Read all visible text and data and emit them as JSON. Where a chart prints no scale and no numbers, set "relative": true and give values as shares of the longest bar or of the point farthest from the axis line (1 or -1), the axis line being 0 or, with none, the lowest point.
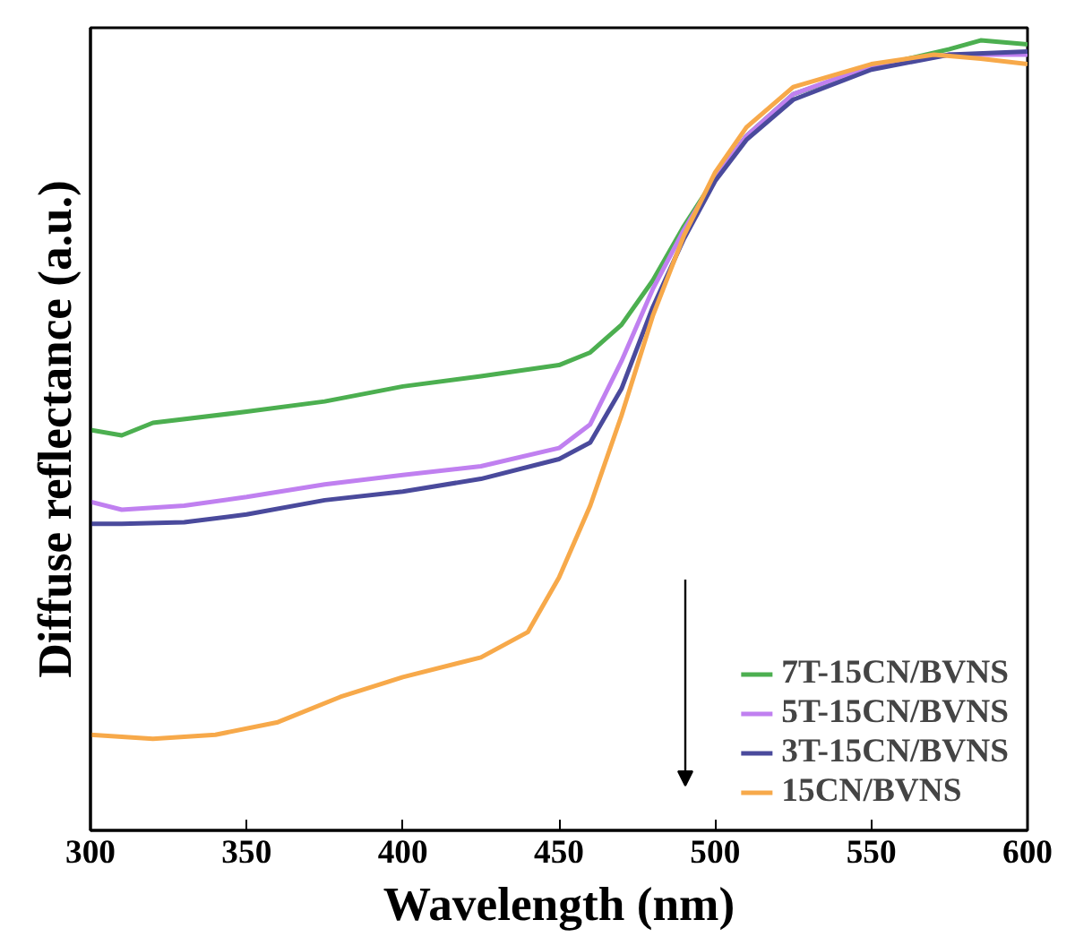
{
  "chart_data": {
    "type": "line",
    "xlabel": "Wavelength (nm)",
    "ylabel": "Diffuse reflectance (a.u.)",
    "relative": true,
    "xlim": [
      300,
      600
    ],
    "xticks": [
      300,
      350,
      400,
      450,
      500,
      550,
      600
    ],
    "legend": "bottom right",
    "grid": false,
    "line_style": "solid",
    "marker": "none",
    "series": [
      {
        "name": "7T-15CN/BVNS",
        "color": "#4caf50",
        "x": [
          300,
          310,
          320,
          350,
          375,
          400,
          425,
          450,
          460,
          470,
          480,
          490,
          500,
          510,
          525,
          550,
          575,
          585,
          600
        ],
        "values": [
          0.507,
          0.5,
          0.516,
          0.53,
          0.543,
          0.562,
          0.575,
          0.589,
          0.605,
          0.64,
          0.696,
          0.765,
          0.826,
          0.879,
          0.932,
          0.966,
          0.989,
          1.0,
          0.995
        ]
      },
      {
        "name": "5T-15CN/BVNS",
        "color": "#c080f0",
        "x": [
          300,
          310,
          330,
          350,
          375,
          400,
          425,
          450,
          460,
          470,
          480,
          490,
          500,
          510,
          525,
          550,
          575,
          600
        ],
        "values": [
          0.416,
          0.406,
          0.411,
          0.422,
          0.438,
          0.45,
          0.461,
          0.484,
          0.514,
          0.594,
          0.685,
          0.76,
          0.826,
          0.879,
          0.932,
          0.968,
          0.982,
          0.982
        ]
      },
      {
        "name": "3T-15CN/BVNS",
        "color": "#4a4a9c",
        "x": [
          300,
          310,
          330,
          350,
          375,
          400,
          425,
          450,
          460,
          470,
          480,
          490,
          500,
          510,
          525,
          550,
          575,
          600
        ],
        "values": [
          0.388,
          0.388,
          0.39,
          0.4,
          0.418,
          0.429,
          0.445,
          0.47,
          0.491,
          0.559,
          0.662,
          0.749,
          0.822,
          0.874,
          0.925,
          0.963,
          0.982,
          0.986
        ]
      },
      {
        "name": "15CN/BVNS",
        "color": "#f7a94a",
        "x": [
          300,
          320,
          340,
          360,
          380,
          400,
          425,
          440,
          450,
          460,
          470,
          480,
          490,
          500,
          510,
          525,
          550,
          570,
          585,
          600
        ],
        "values": [
          0.121,
          0.116,
          0.121,
          0.137,
          0.169,
          0.194,
          0.219,
          0.251,
          0.32,
          0.411,
          0.525,
          0.651,
          0.753,
          0.833,
          0.89,
          0.941,
          0.97,
          0.982,
          0.977,
          0.97
        ]
      }
    ]
  }
}
